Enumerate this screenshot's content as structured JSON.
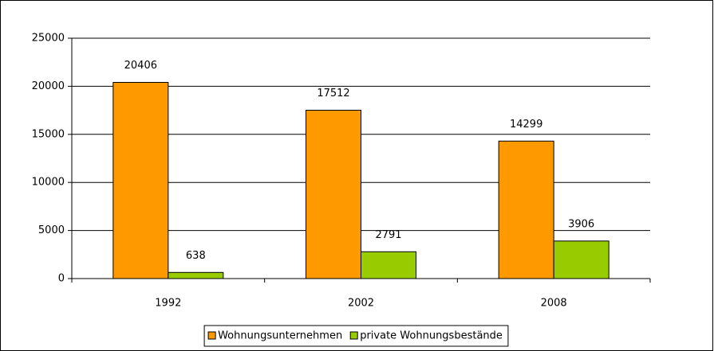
{
  "chart_data": {
    "type": "bar",
    "categories": [
      "1992",
      "2002",
      "2008"
    ],
    "series": [
      {
        "name": "Wohnungsunternehmen",
        "color": "#ff9900",
        "values": [
          20406,
          17512,
          14299
        ]
      },
      {
        "name": "private Wohnungsbestände",
        "color": "#99cc00",
        "values": [
          638,
          2791,
          3906
        ]
      }
    ],
    "ylim": [
      0,
      25000
    ],
    "yticks": [
      0,
      5000,
      10000,
      15000,
      20000,
      25000
    ],
    "grid": true,
    "legend": "bottom"
  }
}
